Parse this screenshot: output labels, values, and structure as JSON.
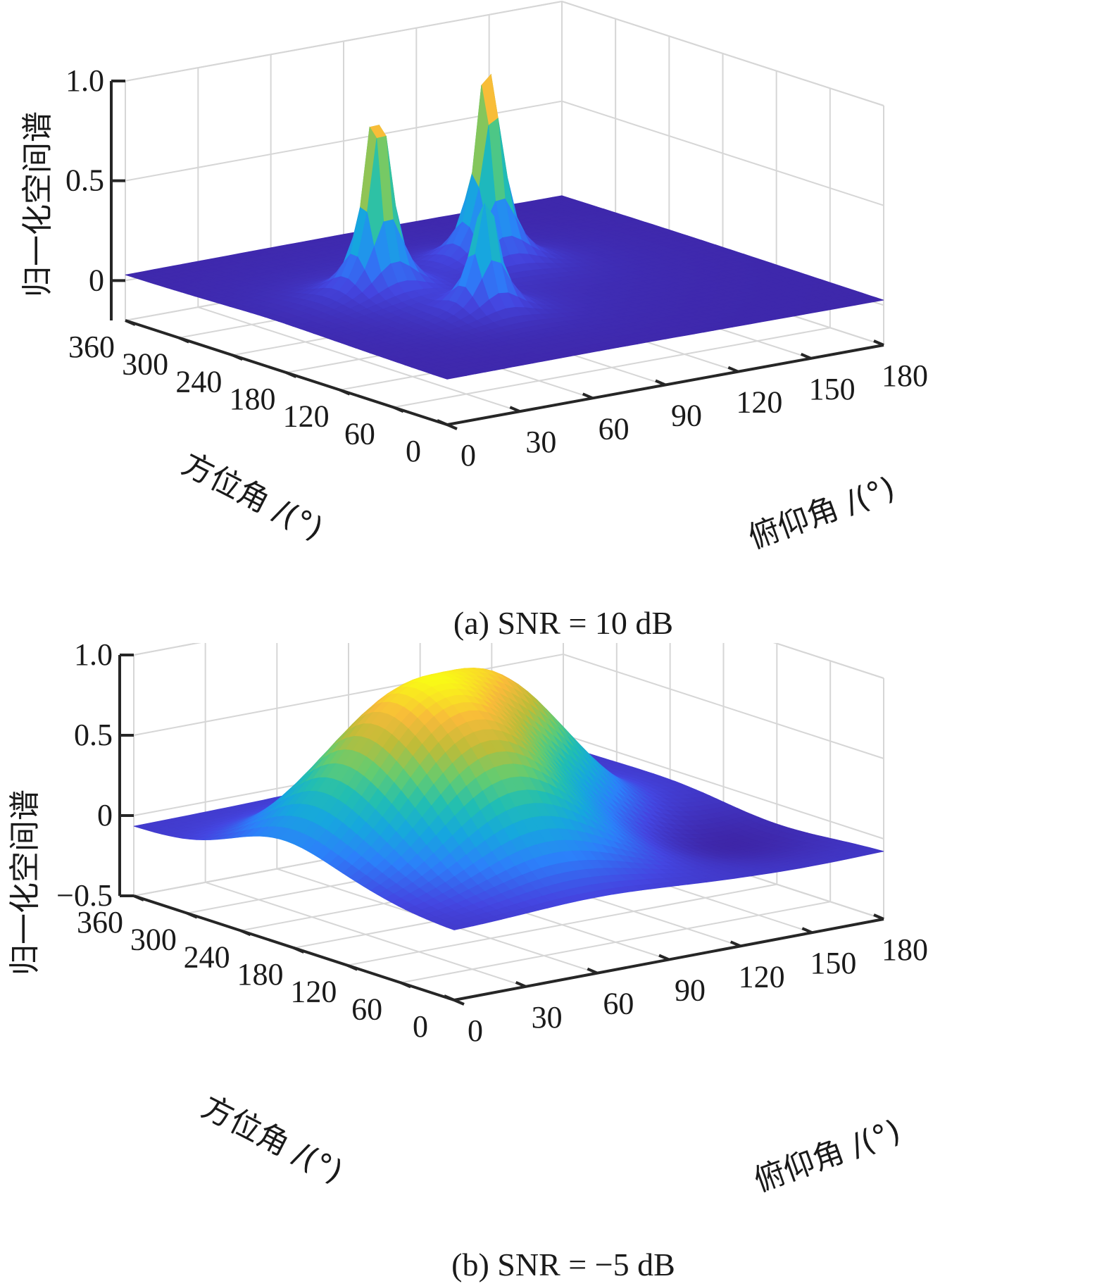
{
  "figure": {
    "colormap": "parula",
    "colors": {
      "grid": "#d6d6d6",
      "axis": "#262626",
      "text": "#1a1a1a"
    }
  },
  "chart_data": [
    {
      "type": "surface",
      "caption": "(a) SNR = 10 dB",
      "zlabel": "归一化空间谱",
      "ylabel": "方位角 /(°)",
      "xlabel": "俯仰角 /(°)",
      "x_ticks": [
        "0",
        "30",
        "60",
        "90",
        "120",
        "150",
        "180"
      ],
      "y_ticks": [
        "0",
        "60",
        "120",
        "180",
        "240",
        "300",
        "360"
      ],
      "z_ticks": [
        "0",
        "0.5",
        "1.0"
      ],
      "xlim": [
        0,
        180
      ],
      "ylim": [
        0,
        360
      ],
      "zlim": [
        -0.2,
        1.0
      ],
      "grid": true,
      "peaks": [
        {
          "elevation": 60,
          "azimuth": 120,
          "value": 0.58
        },
        {
          "elevation": 45,
          "azimuth": 200,
          "value": 0.98
        },
        {
          "elevation": 100,
          "azimuth": 225,
          "value": 1.0
        }
      ],
      "peak_width": 0.03,
      "peak_shape": "sharp",
      "baseline": 0.02
    },
    {
      "type": "surface",
      "caption": "(b) SNR = −5 dB",
      "zlabel": "归一化空间谱",
      "ylabel": "方位角 /(°)",
      "xlabel": "俯仰角 /(°)",
      "x_ticks": [
        "0",
        "30",
        "60",
        "90",
        "120",
        "150",
        "180"
      ],
      "y_ticks": [
        "0",
        "60",
        "120",
        "180",
        "240",
        "300",
        "360"
      ],
      "z_ticks": [
        "−0.5",
        "0",
        "0.5",
        "1.0"
      ],
      "xlim": [
        0,
        180
      ],
      "ylim": [
        0,
        360
      ],
      "zlim": [
        -0.5,
        1.0
      ],
      "grid": true,
      "peaks": [
        {
          "elevation": 60,
          "azimuth": 120,
          "value": 0.75
        },
        {
          "elevation": 45,
          "azimuth": 200,
          "value": 0.85
        },
        {
          "elevation": 100,
          "azimuth": 225,
          "value": 1.0
        }
      ],
      "peak_width": 0.45,
      "peak_shape": "smooth",
      "baseline": -0.08
    }
  ]
}
